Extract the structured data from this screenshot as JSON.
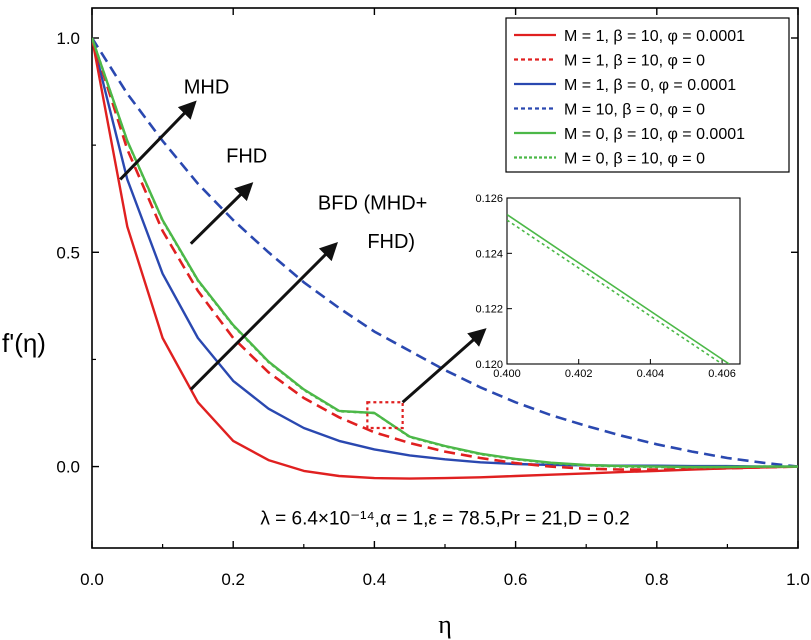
{
  "chart_data": [
    {
      "type": "line",
      "title": "",
      "xlabel": "η",
      "ylabel": "f'(η)",
      "xlim": [
        0.0,
        1.0
      ],
      "ylim": [
        -0.19,
        1.07
      ],
      "xticks": [
        0.0,
        0.2,
        0.4,
        0.6,
        0.8,
        1.0
      ],
      "xtick_labels": [
        "0.0",
        "0.2",
        "0.4",
        "0.6",
        "0.8",
        "1.0"
      ],
      "yticks": [
        0.0,
        0.5,
        1.0
      ],
      "ytick_labels": [
        "0.0",
        "0.5",
        "1.0"
      ],
      "legend_position": "top-right",
      "parameter_text": "λ = 6.4×10⁻¹⁴,α = 1,ε = 78.5,Pr = 21,D = 0.2",
      "annotations": [
        {
          "text": "MHD",
          "x": 0.13,
          "y": 0.87
        },
        {
          "text": "FHD",
          "x": 0.19,
          "y": 0.71
        },
        {
          "text": "BFD (MHD+",
          "x": 0.32,
          "y": 0.6
        },
        {
          "text": "FHD)",
          "x": 0.39,
          "y": 0.51
        }
      ],
      "arrows": [
        {
          "from": [
            0.04,
            0.67
          ],
          "to": [
            0.14,
            0.84
          ]
        },
        {
          "from": [
            0.14,
            0.52
          ],
          "to": [
            0.22,
            0.65
          ]
        },
        {
          "from": [
            0.14,
            0.18
          ],
          "to": [
            0.34,
            0.51
          ]
        },
        {
          "from": [
            0.44,
            0.15
          ],
          "to": [
            0.55,
            0.31
          ]
        }
      ],
      "zoom_box": {
        "x": [
          0.39,
          0.44
        ],
        "y": [
          0.09,
          0.15
        ]
      },
      "series": [
        {
          "name": "M = 1, β = 10, φ = 0.0001",
          "color": "#e02020",
          "dash": "solid",
          "x": [
            0,
            0.05,
            0.1,
            0.15,
            0.2,
            0.25,
            0.3,
            0.35,
            0.4,
            0.45,
            0.5,
            0.55,
            0.6,
            0.65,
            0.7,
            0.75,
            0.8,
            0.85,
            0.9,
            0.95,
            1.0
          ],
          "y": [
            1.0,
            0.56,
            0.3,
            0.15,
            0.06,
            0.015,
            -0.01,
            -0.022,
            -0.027,
            -0.028,
            -0.027,
            -0.025,
            -0.022,
            -0.019,
            -0.016,
            -0.013,
            -0.01,
            -0.007,
            -0.004,
            -0.002,
            0.0
          ]
        },
        {
          "name": "M = 1, β = 10, φ = 0",
          "color": "#e02020",
          "dash": "dash",
          "x": [
            0,
            0.05,
            0.1,
            0.15,
            0.2,
            0.25,
            0.3,
            0.35,
            0.4,
            0.45,
            0.5,
            0.55,
            0.6,
            0.65,
            0.7,
            0.75,
            0.8,
            0.85,
            0.9,
            0.95,
            1.0
          ],
          "y": [
            1.0,
            0.74,
            0.55,
            0.41,
            0.3,
            0.22,
            0.16,
            0.115,
            0.08,
            0.055,
            0.035,
            0.02,
            0.008,
            0.0,
            -0.005,
            -0.007,
            -0.007,
            -0.006,
            -0.004,
            -0.002,
            0.0
          ]
        },
        {
          "name": "M = 1, β = 0, φ = 0.0001",
          "color": "#2a48b0",
          "dash": "solid",
          "x": [
            0,
            0.05,
            0.1,
            0.15,
            0.2,
            0.25,
            0.3,
            0.35,
            0.4,
            0.45,
            0.5,
            0.55,
            0.6,
            0.65,
            0.7,
            0.75,
            0.8,
            0.85,
            0.9,
            0.95,
            1.0
          ],
          "y": [
            1.0,
            0.67,
            0.45,
            0.3,
            0.2,
            0.135,
            0.09,
            0.06,
            0.04,
            0.026,
            0.017,
            0.01,
            0.006,
            0.004,
            0.003,
            0.002,
            0.002,
            0.001,
            0.001,
            0.0,
            0.0
          ]
        },
        {
          "name": "M = 10, β = 0, φ = 0",
          "color": "#2a48b0",
          "dash": "dash",
          "x": [
            0,
            0.05,
            0.1,
            0.15,
            0.2,
            0.25,
            0.3,
            0.35,
            0.4,
            0.45,
            0.5,
            0.55,
            0.6,
            0.65,
            0.7,
            0.75,
            0.8,
            0.85,
            0.9,
            0.95,
            1.0
          ],
          "y": [
            1.0,
            0.87,
            0.76,
            0.66,
            0.575,
            0.5,
            0.43,
            0.37,
            0.315,
            0.27,
            0.225,
            0.185,
            0.15,
            0.12,
            0.095,
            0.072,
            0.052,
            0.035,
            0.02,
            0.009,
            0.0
          ]
        },
        {
          "name": "M = 0, β = 10, φ = 0.0001",
          "color": "#4cb848",
          "dash": "solid",
          "x": [
            0,
            0.05,
            0.1,
            0.15,
            0.2,
            0.25,
            0.3,
            0.35,
            0.4,
            0.45,
            0.5,
            0.55,
            0.6,
            0.65,
            0.7,
            0.75,
            0.8,
            0.85,
            0.9,
            0.95,
            1.0
          ],
          "y": [
            1.0,
            0.76,
            0.575,
            0.435,
            0.33,
            0.245,
            0.18,
            0.13,
            0.125,
            0.07,
            0.048,
            0.03,
            0.018,
            0.009,
            0.004,
            0.001,
            0.0,
            -0.001,
            -0.001,
            0.0,
            0.0
          ]
        },
        {
          "name": "M = 0, β = 10, φ = 0",
          "color": "#4cb848",
          "dash": "dot",
          "x": [
            0,
            0.05,
            0.1,
            0.15,
            0.2,
            0.25,
            0.3,
            0.35,
            0.4,
            0.45,
            0.5,
            0.55,
            0.6,
            0.65,
            0.7,
            0.75,
            0.8,
            0.85,
            0.9,
            0.95,
            1.0
          ],
          "y": [
            1.0,
            0.759,
            0.574,
            0.434,
            0.329,
            0.244,
            0.179,
            0.129,
            0.1249,
            0.069,
            0.047,
            0.029,
            0.017,
            0.008,
            0.003,
            0.0,
            -0.001,
            -0.002,
            -0.001,
            0.0,
            0.0
          ]
        }
      ]
    },
    {
      "type": "line",
      "title": "",
      "role": "inset zoom",
      "xlim": [
        0.4,
        0.4065
      ],
      "ylim": [
        0.12,
        0.126
      ],
      "xticks": [
        0.4,
        0.402,
        0.404,
        0.406
      ],
      "xtick_labels": [
        "0.400",
        "0.402",
        "0.404",
        "0.406"
      ],
      "yticks": [
        0.12,
        0.122,
        0.124,
        0.126
      ],
      "ytick_labels": [
        "0.120",
        "0.122",
        "0.124",
        "0.126"
      ],
      "series": [
        {
          "name": "M = 0, β = 10, φ = 0.0001",
          "color": "#4cb848",
          "dash": "solid",
          "x": [
            0.4,
            0.4062
          ],
          "y": [
            0.1254,
            0.12
          ]
        },
        {
          "name": "M = 0, β = 10, φ = 0",
          "color": "#4cb848",
          "dash": "dot",
          "x": [
            0.4,
            0.406
          ],
          "y": [
            0.1252,
            0.12
          ]
        }
      ]
    }
  ]
}
